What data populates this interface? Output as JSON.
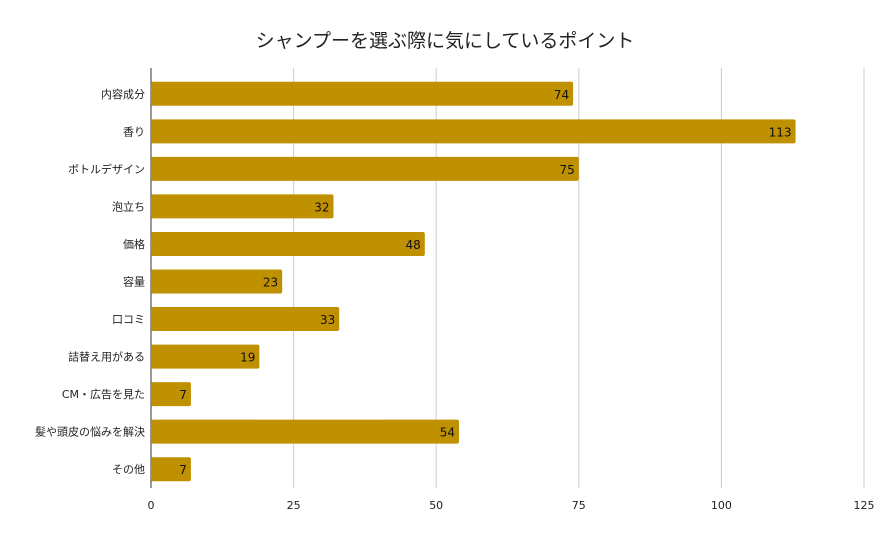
{
  "chart_data": {
    "type": "bar",
    "orientation": "horizontal",
    "title": "シャンプーを選ぶ際に気にしているポイント",
    "xlabel": "",
    "ylabel": "",
    "categories": [
      "内容成分",
      "香り",
      "ボトルデザイン",
      "泡立ち",
      "価格",
      "容量",
      "口コミ",
      "詰替え用がある",
      "CM・広告を見た",
      "髪や頭皮の悩みを解決",
      "その他"
    ],
    "values": [
      74,
      113,
      75,
      32,
      48,
      23,
      33,
      19,
      7,
      54,
      7
    ],
    "xlim": [
      0,
      125
    ],
    "xticks": [
      0,
      25,
      50,
      75,
      100,
      125
    ],
    "grid": true,
    "legend": "none",
    "bar_color": "#bf9000",
    "data_labels": true
  }
}
